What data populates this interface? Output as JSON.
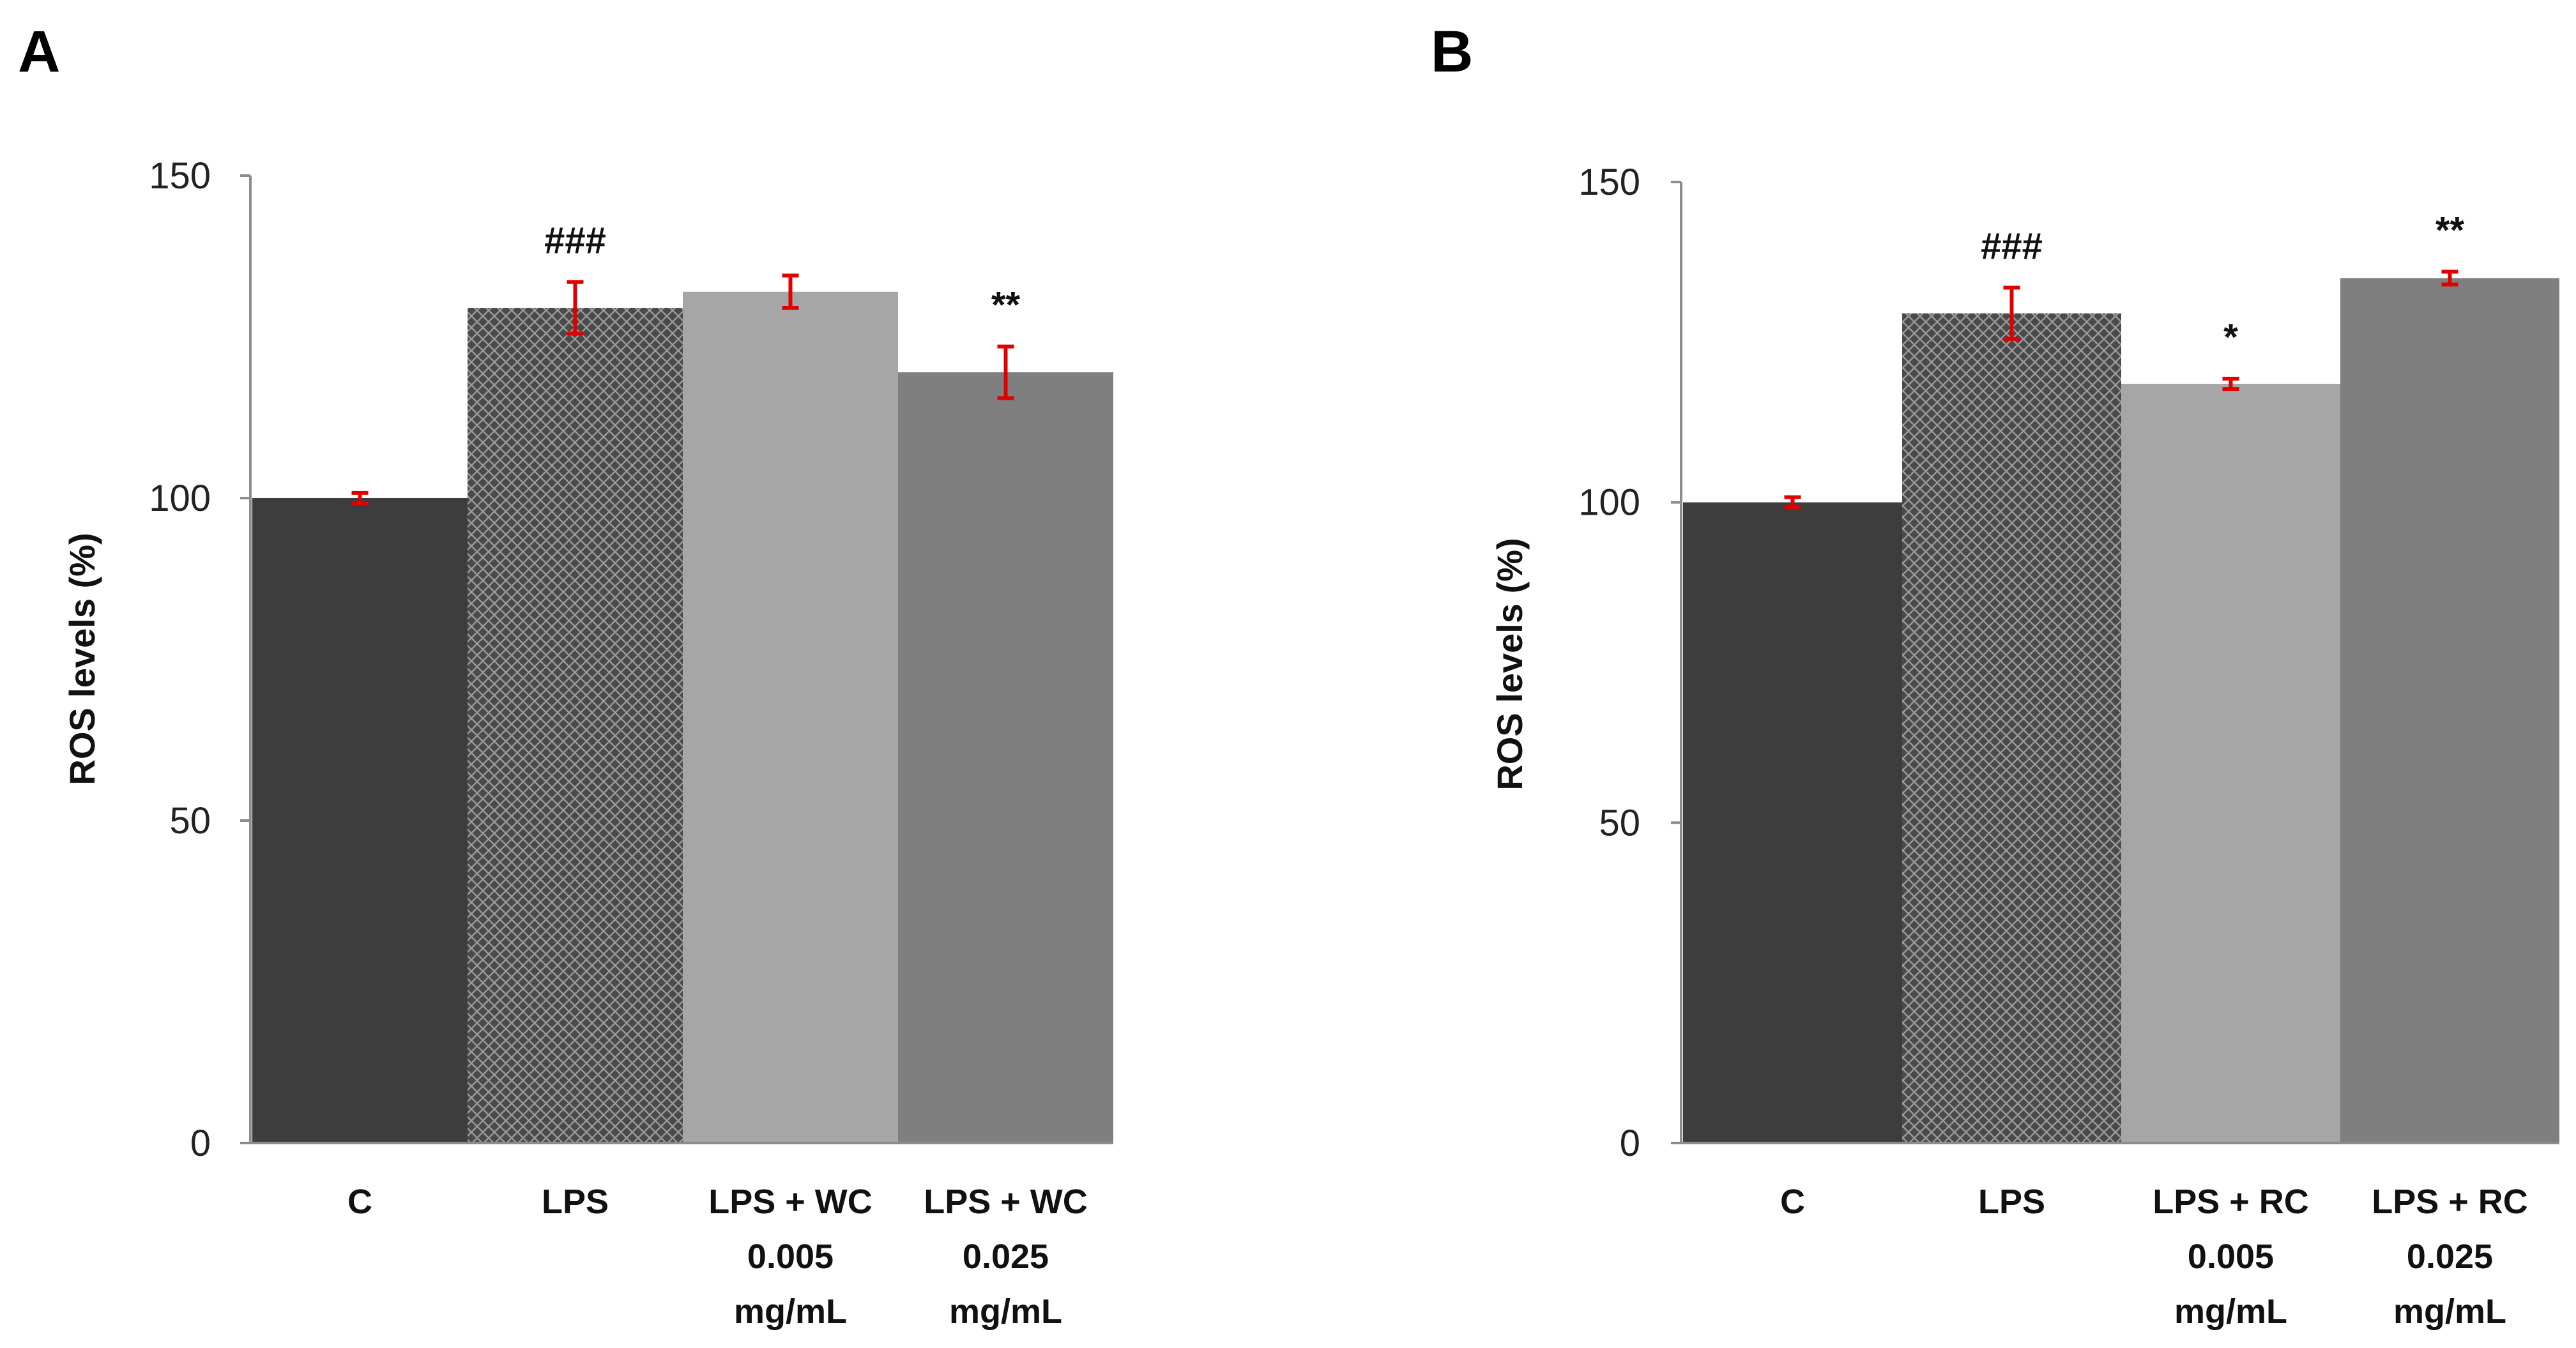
{
  "colors": {
    "dark": "#3d3d3d",
    "hatched_bg": "#4a4a4a",
    "hatched_fg": "#9a9a9a",
    "light": "#a6a6a6",
    "medium": "#7f7f7f",
    "error_bar": "#e00000",
    "axis": "#8c8c8c"
  },
  "chart_data": [
    {
      "panel": "A",
      "type": "bar",
      "ylabel": "ROS levels (%)",
      "ylim": [
        0,
        150
      ],
      "yticks": [
        "0",
        "50",
        "100",
        "150"
      ],
      "categories": [
        [
          "C"
        ],
        [
          "LPS"
        ],
        [
          "LPS + WC",
          "0.005",
          "mg/mL"
        ],
        [
          "LPS + WC",
          "0.025",
          "mg/mL"
        ]
      ],
      "values": [
        100,
        129.5,
        132,
        119.5
      ],
      "errors": [
        0.8,
        4,
        2.5,
        4
      ],
      "annotations": [
        "",
        "###",
        "",
        "**"
      ],
      "fills": [
        "dark",
        "hatched",
        "light",
        "medium"
      ]
    },
    {
      "panel": "B",
      "type": "bar",
      "ylabel": "ROS levels (%)",
      "ylim": [
        0,
        150
      ],
      "yticks": [
        "0",
        "50",
        "100",
        "150"
      ],
      "categories": [
        [
          "C"
        ],
        [
          "LPS"
        ],
        [
          "LPS + RC",
          "0.005",
          "mg/mL"
        ],
        [
          "LPS + RC",
          "0.025",
          "mg/mL"
        ]
      ],
      "values": [
        100,
        129.5,
        118.5,
        135
      ],
      "errors": [
        0.8,
        4,
        0.8,
        1
      ],
      "annotations": [
        "",
        "###",
        "*",
        "**"
      ],
      "fills": [
        "dark",
        "hatched",
        "light",
        "medium"
      ]
    }
  ]
}
